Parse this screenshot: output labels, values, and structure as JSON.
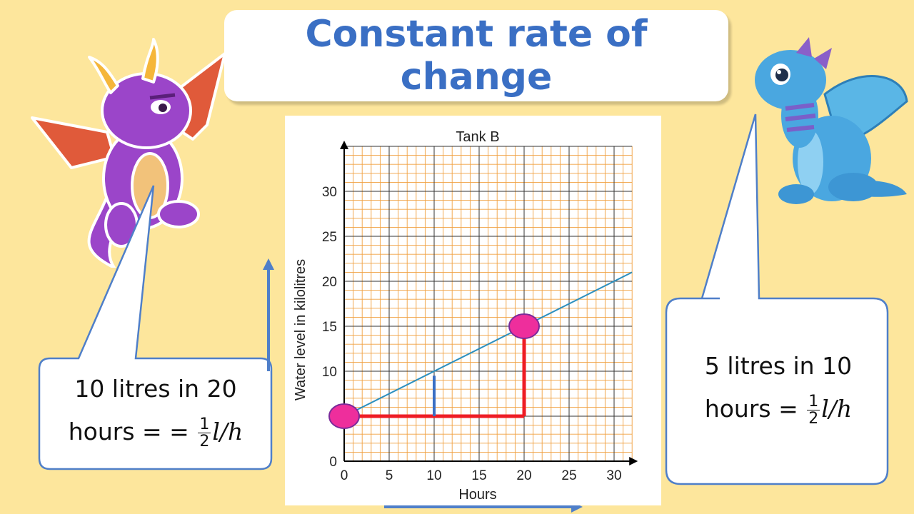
{
  "slide": {
    "title_line1": "Constant rate of",
    "title_line2": "change"
  },
  "left_bubble": {
    "line1": "10 litres in 20",
    "line2_prefix": "hours = =",
    "frac_num": "1",
    "frac_den": "2",
    "unit": "l/h"
  },
  "right_bubble": {
    "line1": "5 litres in 10",
    "line2_prefix": "hours =",
    "frac_num": "1",
    "frac_den": "2",
    "unit": "l/h"
  },
  "chart_data": {
    "type": "line",
    "title": "Tank B",
    "xlabel": "Hours",
    "ylabel": "Water level in kilolitres",
    "xlim": [
      0,
      32
    ],
    "ylim": [
      0,
      35
    ],
    "x_ticks": [
      0,
      5,
      10,
      15,
      20,
      25,
      30
    ],
    "y_ticks": [
      0,
      10,
      15,
      20,
      25,
      30
    ],
    "grid": true,
    "series": [
      {
        "x": [
          0,
          32
        ],
        "y": [
          5,
          21
        ]
      }
    ],
    "highlight_points": [
      {
        "x": 0,
        "y": 5
      },
      {
        "x": 20,
        "y": 15
      }
    ],
    "colors": {
      "line": "#2b8fbf",
      "grid": "#f0a040",
      "point_fill": "#ee2e9c",
      "point_stroke": "#7a2a9a",
      "triangle": "#ee1c24",
      "vertical_marker": "#3a6fc4"
    }
  },
  "colors": {
    "background": "#fde69c",
    "title": "#3a6fc4",
    "arrow": "#4f7fc9"
  }
}
